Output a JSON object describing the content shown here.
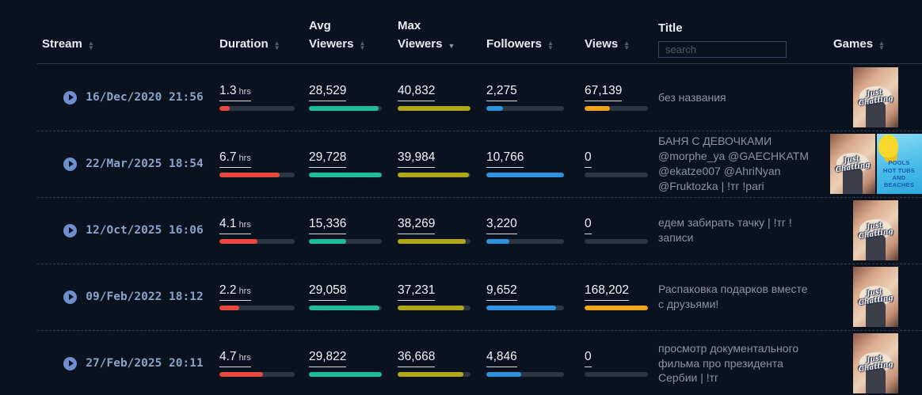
{
  "columns": {
    "stream": {
      "label": "Stream",
      "sort": "none"
    },
    "duration": {
      "label": "Duration",
      "sort": "none"
    },
    "avg": {
      "label": "Avg\nViewers",
      "sort": "none"
    },
    "max": {
      "label": "Max\nViewers",
      "sort": "desc"
    },
    "followers": {
      "label": "Followers",
      "sort": "none"
    },
    "views": {
      "label": "Views",
      "sort": "none"
    },
    "title": {
      "label": "Title",
      "search_placeholder": "search"
    },
    "games": {
      "label": "Games",
      "sort": "none"
    }
  },
  "colors": {
    "background": "#0a1220",
    "duration_bar": "#e8483e",
    "avg_viewers_bar": "#1fbc9c",
    "max_viewers_bar": "#b2a71c",
    "followers_bar": "#2f92dc",
    "views_bar": "#f2a31d",
    "bar_track": "#2d3743",
    "date_link": "#8aa3c8"
  },
  "rows": [
    {
      "date": "16/Dec/2020 21:56",
      "duration": {
        "value": "1.3",
        "unit": "hrs",
        "pct": 14
      },
      "avg_viewers": {
        "value": "28,529",
        "pct": 96
      },
      "max_viewers": {
        "value": "40,832",
        "pct": 100
      },
      "followers": {
        "value": "2,275",
        "pct": 21
      },
      "views": {
        "value": "67,139",
        "pct": 40
      },
      "title": "без названия",
      "games": [
        {
          "label": "Just\nChatting"
        }
      ]
    },
    {
      "date": "22/Mar/2025 18:54",
      "duration": {
        "value": "6.7",
        "unit": "hrs",
        "pct": 80
      },
      "avg_viewers": {
        "value": "29,728",
        "pct": 100
      },
      "max_viewers": {
        "value": "39,984",
        "pct": 98
      },
      "followers": {
        "value": "10,766",
        "pct": 100
      },
      "views": {
        "value": "0",
        "pct": 0
      },
      "title": "БАНЯ С ДЕВОЧКАМИ @morphe_ya @GAECHKATM @ekatze007 @AhriNyan @Fruktozka | !тг !pari",
      "games": [
        {
          "label": "Just\nChatting"
        },
        {
          "label": "POOLS\nHOT TUBS\nAND\nBEACHES"
        }
      ]
    },
    {
      "date": "12/Oct/2025 16:06",
      "duration": {
        "value": "4.1",
        "unit": "hrs",
        "pct": 50
      },
      "avg_viewers": {
        "value": "15,336",
        "pct": 51
      },
      "max_viewers": {
        "value": "38,269",
        "pct": 94
      },
      "followers": {
        "value": "3,220",
        "pct": 30
      },
      "views": {
        "value": "0",
        "pct": 0
      },
      "title": "едем забирать тачку | !тг !записи",
      "games": [
        {
          "label": "Just\nChatting"
        }
      ]
    },
    {
      "date": "09/Feb/2022 18:12",
      "duration": {
        "value": "2.2",
        "unit": "hrs",
        "pct": 26
      },
      "avg_viewers": {
        "value": "29,058",
        "pct": 97
      },
      "max_viewers": {
        "value": "37,231",
        "pct": 91
      },
      "followers": {
        "value": "9,652",
        "pct": 90
      },
      "views": {
        "value": "168,202",
        "pct": 100
      },
      "title": "Распаковка подарков вместе с друзьями!",
      "games": [
        {
          "label": "Just\nChatting"
        }
      ]
    },
    {
      "date": "27/Feb/2025 20:11",
      "duration": {
        "value": "4.7",
        "unit": "hrs",
        "pct": 58
      },
      "avg_viewers": {
        "value": "29,822",
        "pct": 100
      },
      "max_viewers": {
        "value": "36,668",
        "pct": 90
      },
      "followers": {
        "value": "4,846",
        "pct": 45
      },
      "views": {
        "value": "0",
        "pct": 0
      },
      "title": "просмотр документального фильма про президента Сербии | !тг",
      "games": [
        {
          "label": "Just\nChatting"
        }
      ]
    }
  ]
}
